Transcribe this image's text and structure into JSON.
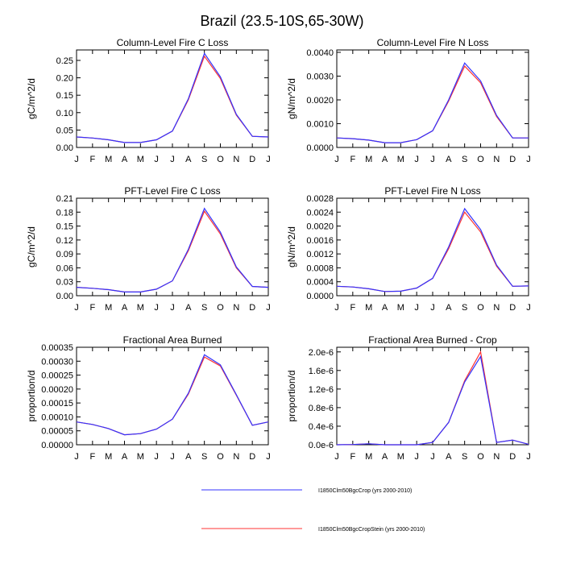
{
  "page_title": "Brazil (23.5-10S,65-30W)",
  "legend": [
    {
      "label": "I1850Clm50BgcCrop (yrs 2000-2010)",
      "color": "#3333ff"
    },
    {
      "label": "I1850Clm50BgcCropStein (yrs 2000-2010)",
      "color": "#ff3333"
    }
  ],
  "chart_data": [
    {
      "type": "line",
      "title": "Column-Level Fire C Loss",
      "ylabel": "gC/m^2/d",
      "categories": [
        "J",
        "F",
        "M",
        "A",
        "M",
        "J",
        "J",
        "A",
        "S",
        "O",
        "N",
        "D",
        "J"
      ],
      "ylim": [
        0,
        0.28
      ],
      "yticks": [
        0,
        0.05,
        0.1,
        0.15,
        0.2,
        0.25
      ],
      "ytick_labels": [
        "0.00",
        "0.05",
        "0.10",
        "0.15",
        "0.20",
        "0.25"
      ],
      "series": [
        {
          "name": "I1850Clm50BgcCrop (yrs 2000-2010)",
          "color": "#3333ff",
          "values": [
            0.03,
            0.027,
            0.022,
            0.014,
            0.014,
            0.022,
            0.047,
            0.14,
            0.27,
            0.203,
            0.095,
            0.032,
            0.03
          ]
        },
        {
          "name": "I1850Clm50BgcCropStein (yrs 2000-2010)",
          "color": "#ff3333",
          "values": [
            0.03,
            0.027,
            0.022,
            0.014,
            0.014,
            0.022,
            0.047,
            0.137,
            0.262,
            0.198,
            0.093,
            0.032,
            0.03
          ]
        }
      ]
    },
    {
      "type": "line",
      "title": "Column-Level Fire N Loss",
      "ylabel": "gN/m^2/d",
      "categories": [
        "J",
        "F",
        "M",
        "A",
        "M",
        "J",
        "J",
        "A",
        "S",
        "O",
        "N",
        "D",
        "J"
      ],
      "ylim": [
        0,
        0.0041
      ],
      "yticks": [
        0,
        0.001,
        0.002,
        0.003,
        0.004
      ],
      "ytick_labels": [
        "0.0000",
        "0.0010",
        "0.0020",
        "0.0030",
        "0.0040"
      ],
      "series": [
        {
          "name": "I1850Clm50BgcCrop (yrs 2000-2010)",
          "color": "#3333ff",
          "values": [
            0.0004,
            0.00037,
            0.00031,
            0.0002,
            0.0002,
            0.00033,
            0.0007,
            0.002,
            0.00355,
            0.0028,
            0.00135,
            0.0004,
            0.0004
          ]
        },
        {
          "name": "I1850Clm50BgcCropStein (yrs 2000-2010)",
          "color": "#ff3333",
          "values": [
            0.0004,
            0.00037,
            0.00031,
            0.0002,
            0.0002,
            0.00033,
            0.0007,
            0.00195,
            0.00342,
            0.00272,
            0.0013,
            0.0004,
            0.0004
          ]
        }
      ]
    },
    {
      "type": "line",
      "title": "PFT-Level Fire C Loss",
      "ylabel": "gC/m^2/d",
      "categories": [
        "J",
        "F",
        "M",
        "A",
        "M",
        "J",
        "J",
        "A",
        "S",
        "O",
        "N",
        "D",
        "J"
      ],
      "ylim": [
        0,
        0.21
      ],
      "yticks": [
        0,
        0.03,
        0.06,
        0.09,
        0.12,
        0.15,
        0.18,
        0.21
      ],
      "ytick_labels": [
        "0.00",
        "0.03",
        "0.06",
        "0.09",
        "0.12",
        "0.15",
        "0.18",
        "0.21"
      ],
      "series": [
        {
          "name": "I1850Clm50BgcCrop (yrs 2000-2010)",
          "color": "#3333ff",
          "values": [
            0.018,
            0.016,
            0.013,
            0.008,
            0.008,
            0.014,
            0.032,
            0.1,
            0.188,
            0.137,
            0.062,
            0.02,
            0.018
          ]
        },
        {
          "name": "I1850Clm50BgcCropStein (yrs 2000-2010)",
          "color": "#ff3333",
          "values": [
            0.018,
            0.016,
            0.013,
            0.008,
            0.008,
            0.014,
            0.032,
            0.097,
            0.182,
            0.133,
            0.06,
            0.02,
            0.018
          ]
        }
      ]
    },
    {
      "type": "line",
      "title": "PFT-Level Fire N Loss",
      "ylabel": "gN/m^2/d",
      "categories": [
        "J",
        "F",
        "M",
        "A",
        "M",
        "J",
        "J",
        "A",
        "S",
        "O",
        "N",
        "D",
        "J"
      ],
      "ylim": [
        0,
        0.0028
      ],
      "yticks": [
        0,
        0.0004,
        0.0008,
        0.0012,
        0.0016,
        0.002,
        0.0024,
        0.0028
      ],
      "ytick_labels": [
        "0.0000",
        "0.0004",
        "0.0008",
        "0.0012",
        "0.0016",
        "0.0020",
        "0.0024",
        "0.0028"
      ],
      "series": [
        {
          "name": "I1850Clm50BgcCrop (yrs 2000-2010)",
          "color": "#3333ff",
          "values": [
            0.00027,
            0.00025,
            0.0002,
            0.00012,
            0.00013,
            0.00022,
            0.0005,
            0.0014,
            0.0025,
            0.0019,
            0.00088,
            0.00027,
            0.00028
          ]
        },
        {
          "name": "I1850Clm50BgcCropStein (yrs 2000-2010)",
          "color": "#ff3333",
          "values": [
            0.00027,
            0.00025,
            0.0002,
            0.00012,
            0.00013,
            0.00022,
            0.0005,
            0.00135,
            0.0024,
            0.00183,
            0.00085,
            0.00027,
            0.00028
          ]
        }
      ]
    },
    {
      "type": "line",
      "title": "Fractional Area Burned",
      "ylabel": "proportion/d",
      "categories": [
        "J",
        "F",
        "M",
        "A",
        "M",
        "J",
        "J",
        "A",
        "S",
        "O",
        "N",
        "D",
        "J"
      ],
      "ylim": [
        0,
        0.00035
      ],
      "yticks": [
        0,
        5e-05,
        0.0001,
        0.00015,
        0.0002,
        0.00025,
        0.0003,
        0.00035
      ],
      "ytick_labels": [
        "0.00000",
        "0.00005",
        "0.00010",
        "0.00015",
        "0.00020",
        "0.00025",
        "0.00030",
        "0.00035"
      ],
      "series": [
        {
          "name": "I1850Clm50BgcCrop (yrs 2000-2010)",
          "color": "#3333ff",
          "values": [
            8.2e-05,
            7.3e-05,
            5.8e-05,
            3.6e-05,
            4e-05,
            5.6e-05,
            9.2e-05,
            0.000185,
            0.000323,
            0.000287,
            0.00018,
            7e-05,
            8.2e-05
          ]
        },
        {
          "name": "I1850Clm50BgcCropStein (yrs 2000-2010)",
          "color": "#ff3333",
          "values": [
            8.2e-05,
            7.3e-05,
            5.8e-05,
            3.6e-05,
            4e-05,
            5.6e-05,
            9.2e-05,
            0.000182,
            0.000315,
            0.000283,
            0.000178,
            7e-05,
            8.2e-05
          ]
        }
      ]
    },
    {
      "type": "line",
      "title": "Fractional Area Burned - Crop",
      "ylabel": "proportion/d",
      "categories": [
        "J",
        "F",
        "M",
        "A",
        "M",
        "J",
        "J",
        "A",
        "S",
        "O",
        "N",
        "D",
        "J"
      ],
      "ylim": [
        0,
        2.1e-06
      ],
      "yticks": [
        0,
        4e-07,
        8e-07,
        1.2e-06,
        1.6e-06,
        2e-06
      ],
      "ytick_labels": [
        "0.0e-6",
        "0.4e-6",
        "0.8e-6",
        "1.2e-6",
        "1.6e-6",
        "2.0e-6"
      ],
      "series": [
        {
          "name": "I1850Clm50BgcCrop (yrs 2000-2010)",
          "color": "#3333ff",
          "values": [
            0,
            5e-09,
            2e-08,
            0,
            0,
            0,
            5e-08,
            4.8e-07,
            1.35e-06,
            1.9e-06,
            5e-08,
            1e-07,
            1e-08
          ]
        },
        {
          "name": "I1850Clm50BgcCropStein (yrs 2000-2010)",
          "color": "#ff3333",
          "values": [
            0,
            5e-09,
            2e-08,
            0,
            0,
            0,
            5e-08,
            4.8e-07,
            1.38e-06,
            2e-06,
            5e-08,
            1e-07,
            1e-08
          ]
        }
      ]
    }
  ]
}
